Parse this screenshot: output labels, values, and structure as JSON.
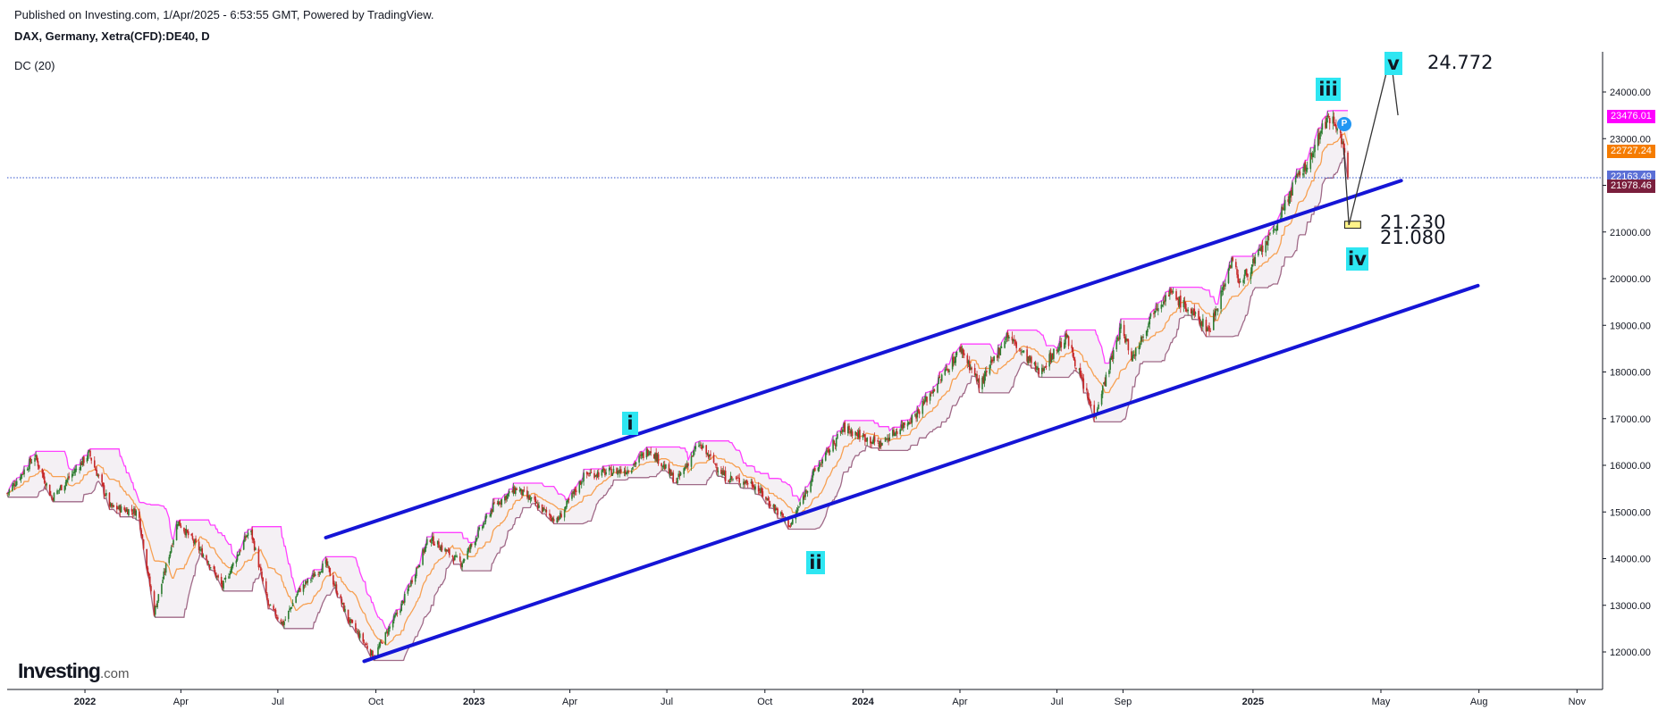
{
  "header": {
    "published": "Published on Investing.com, 1/Apr/2025 - 6:53:55 GMT, Powered by TradingView.",
    "symbol": "DAX, Germany, Xetra(CFD):DE40, D",
    "indicator": "DC (20)"
  },
  "logo": {
    "main": "Investing",
    "suffix": ".com"
  },
  "colors": {
    "channel": "#1515d6",
    "donchian_upper": "#ff40ff",
    "donchian_middle": "#f7a052",
    "donchian_lower": "#a06a88",
    "candle_up": "#2e7d32",
    "candle_down": "#c62828",
    "wave_label_bg": "#2ee6f2",
    "last_price_line": "#3355cc"
  },
  "price_badges": [
    {
      "value": "23476.01",
      "color": "#ff00ff"
    },
    {
      "value": "22727.24",
      "color": "#f57c00"
    },
    {
      "value": "22163.49",
      "color": "#5b6fd6"
    },
    {
      "value": "21978.46",
      "color": "#7a1f3d"
    }
  ],
  "wave_labels": [
    "i",
    "ii",
    "iii",
    "iv",
    "v"
  ],
  "levels": [
    "24.772",
    "21.230",
    "21.080"
  ],
  "pin_label": "P",
  "chart_data": {
    "type": "line",
    "title": "DAX, Germany, Xetra(CFD):DE40, D",
    "ylim": [
      11600,
      25000
    ],
    "y_ticks": [
      "12000.00",
      "13000.00",
      "14000.00",
      "15000.00",
      "16000.00",
      "17000.00",
      "18000.00",
      "19000.00",
      "20000.00",
      "21000.00",
      "22000.00",
      "23000.00",
      "24000.00"
    ],
    "x_ticks": [
      {
        "label": "2022",
        "date": "2022-01-01",
        "year": true
      },
      {
        "label": "Apr",
        "date": "2022-04-01"
      },
      {
        "label": "Jul",
        "date": "2022-07-01"
      },
      {
        "label": "Oct",
        "date": "2022-10-01"
      },
      {
        "label": "2023",
        "date": "2023-01-01",
        "year": true
      },
      {
        "label": "Apr",
        "date": "2023-04-01"
      },
      {
        "label": "Jul",
        "date": "2023-07-01"
      },
      {
        "label": "Oct",
        "date": "2023-10-01"
      },
      {
        "label": "2024",
        "date": "2024-01-01",
        "year": true
      },
      {
        "label": "Apr",
        "date": "2024-04-01"
      },
      {
        "label": "Jul",
        "date": "2024-07-01"
      },
      {
        "label": "Sep",
        "date": "2024-09-01"
      },
      {
        "label": "2025",
        "date": "2025-01-01",
        "year": true
      },
      {
        "label": "May",
        "date": "2025-05-01"
      },
      {
        "label": "Aug",
        "date": "2025-08-01"
      },
      {
        "label": "Nov",
        "date": "2025-11-01"
      }
    ],
    "x_range": [
      "2021-10-20",
      "2025-11-25"
    ],
    "price_path": [
      [
        "2021-10-20",
        15400
      ],
      [
        "2021-11-15",
        16200
      ],
      [
        "2021-12-01",
        15300
      ],
      [
        "2022-01-05",
        16250
      ],
      [
        "2022-01-25",
        15100
      ],
      [
        "2022-02-20",
        15000
      ],
      [
        "2022-03-07",
        12850
      ],
      [
        "2022-03-29",
        14800
      ],
      [
        "2022-04-25",
        14000
      ],
      [
        "2022-05-10",
        13400
      ],
      [
        "2022-06-05",
        14650
      ],
      [
        "2022-06-22",
        13000
      ],
      [
        "2022-07-06",
        12600
      ],
      [
        "2022-07-20",
        13300
      ],
      [
        "2022-08-15",
        13900
      ],
      [
        "2022-09-05",
        12700
      ],
      [
        "2022-09-29",
        11900
      ],
      [
        "2022-10-25",
        13000
      ],
      [
        "2022-11-20",
        14450
      ],
      [
        "2022-12-20",
        13900
      ],
      [
        "2023-01-20",
        15150
      ],
      [
        "2023-02-10",
        15500
      ],
      [
        "2023-03-20",
        14800
      ],
      [
        "2023-04-15",
        15800
      ],
      [
        "2023-05-25",
        15900
      ],
      [
        "2023-06-15",
        16350
      ],
      [
        "2023-07-10",
        15650
      ],
      [
        "2023-07-31",
        16450
      ],
      [
        "2023-08-25",
        15750
      ],
      [
        "2023-09-20",
        15600
      ],
      [
        "2023-10-25",
        14700
      ],
      [
        "2023-11-15",
        15800
      ],
      [
        "2023-12-14",
        16800
      ],
      [
        "2024-01-17",
        16450
      ],
      [
        "2024-02-20",
        17100
      ],
      [
        "2024-03-15",
        17900
      ],
      [
        "2024-04-02",
        18500
      ],
      [
        "2024-04-20",
        17700
      ],
      [
        "2024-05-15",
        18800
      ],
      [
        "2024-06-14",
        18000
      ],
      [
        "2024-07-10",
        18750
      ],
      [
        "2024-08-05",
        17050
      ],
      [
        "2024-08-30",
        18950
      ],
      [
        "2024-09-10",
        18300
      ],
      [
        "2024-10-01",
        19400
      ],
      [
        "2024-10-15",
        19700
      ],
      [
        "2024-11-10",
        19150
      ],
      [
        "2024-11-21",
        18900
      ],
      [
        "2024-12-12",
        20400
      ],
      [
        "2024-12-20",
        19900
      ],
      [
        "2025-01-20",
        21000
      ],
      [
        "2025-02-10",
        22100
      ],
      [
        "2025-02-25",
        22600
      ],
      [
        "2025-03-06",
        23250
      ],
      [
        "2025-03-18",
        23476
      ],
      [
        "2025-03-27",
        22800
      ],
      [
        "2025-03-31",
        22163
      ]
    ],
    "series": [
      {
        "name": "DC (20)",
        "values": []
      }
    ],
    "channel_upper": [
      [
        "2022-08-15",
        14450
      ],
      [
        "2025-05-20",
        22100
      ]
    ],
    "channel_lower": [
      [
        "2022-09-20",
        11800
      ],
      [
        "2025-07-31",
        19850
      ]
    ],
    "projection": [
      [
        "2025-03-27",
        22800
      ],
      [
        "2025-04-01",
        21150
      ],
      [
        "2025-05-10",
        24772
      ],
      [
        "2025-05-17",
        23500
      ]
    ],
    "target_zone": {
      "from": "2025-03-28",
      "to": "2025-04-12",
      "low": 21080,
      "high": 21230
    },
    "last_price": 22163.49
  }
}
